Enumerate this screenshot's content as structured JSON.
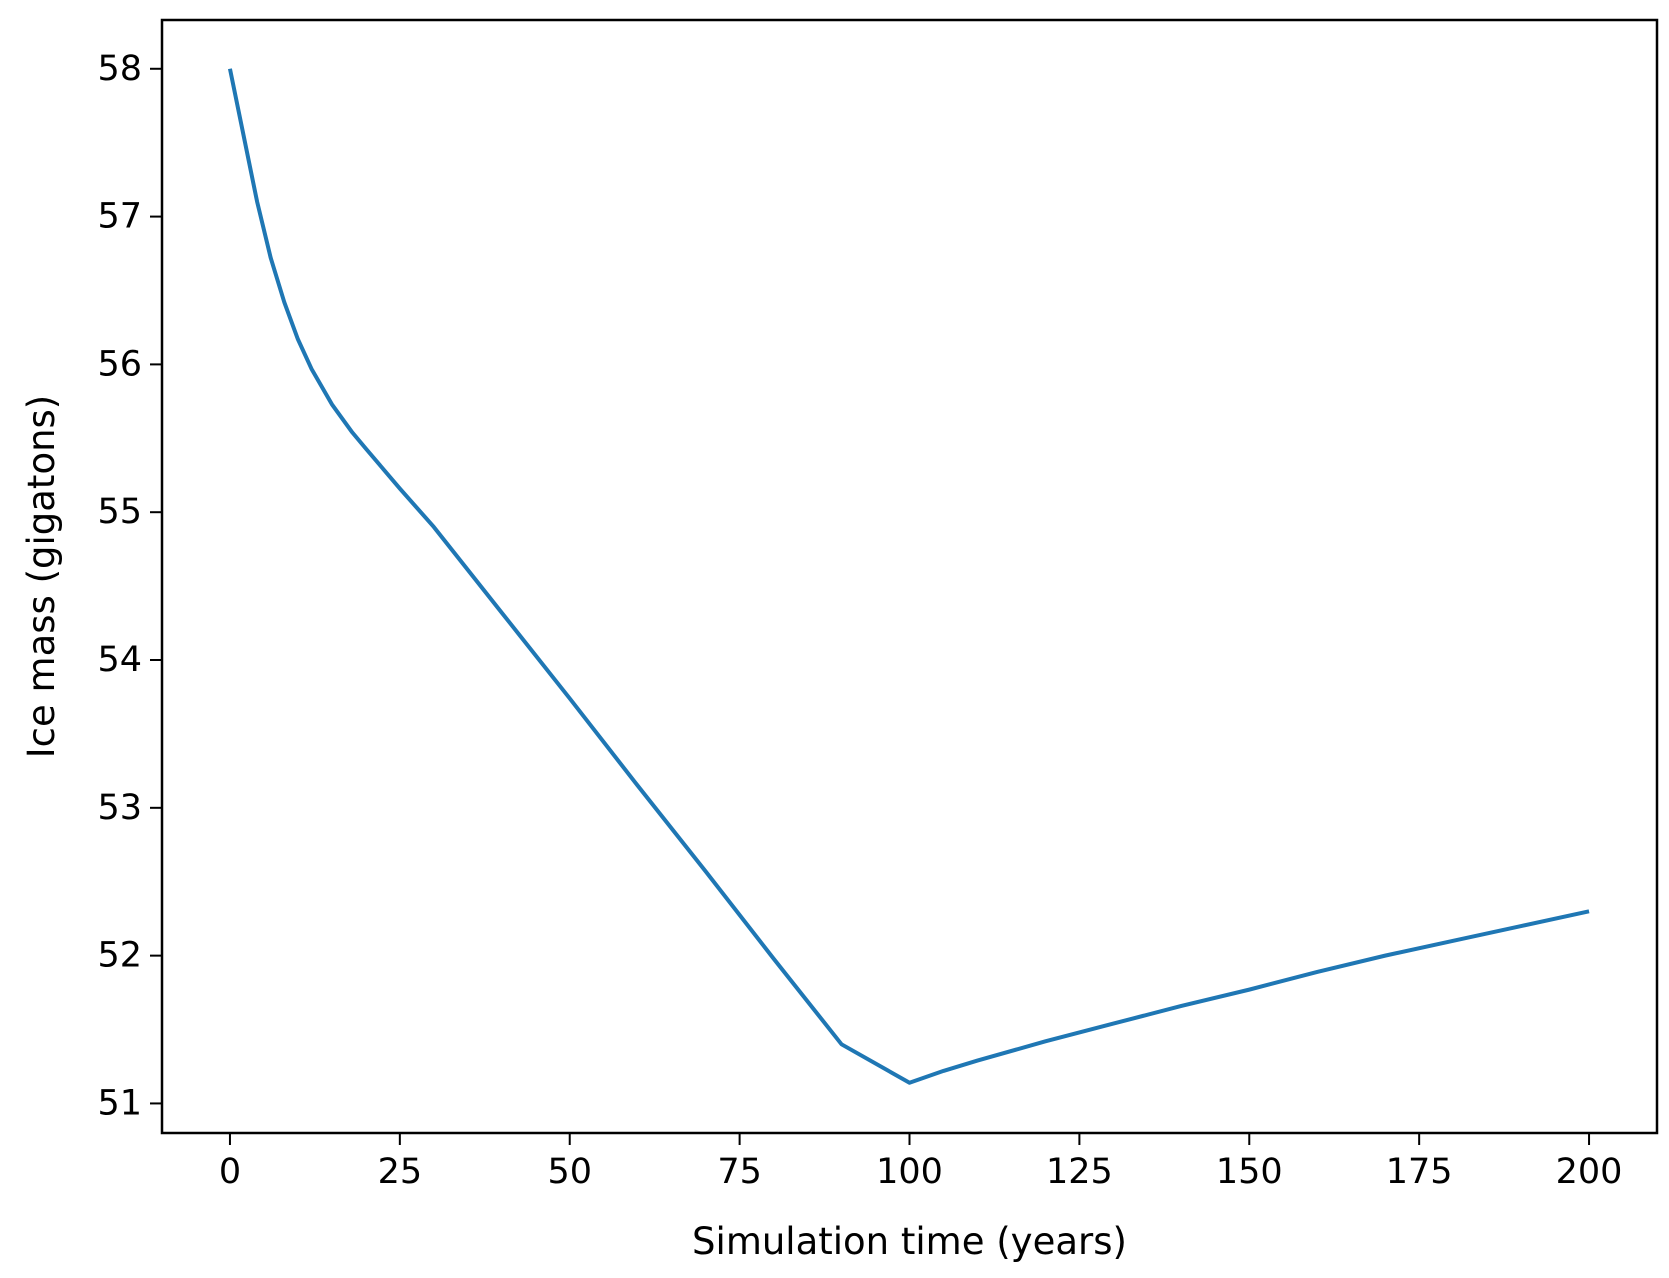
{
  "chart_data": {
    "type": "line",
    "title": "",
    "xlabel": "Simulation time (years)",
    "ylabel": "Ice mass (gigatons)",
    "xlim": [
      -10,
      210
    ],
    "ylim": [
      50.8,
      58.33
    ],
    "xticks": [
      0,
      25,
      50,
      75,
      100,
      125,
      150,
      175,
      200
    ],
    "yticks": [
      51,
      52,
      53,
      54,
      55,
      56,
      57,
      58
    ],
    "grid": false,
    "legend": "none",
    "line_color": "#1f77b4",
    "series": [
      {
        "x": [
          0,
          2,
          4,
          6,
          8,
          10,
          12,
          15,
          18,
          20,
          25,
          30,
          35,
          40,
          50,
          60,
          70,
          80,
          90,
          100,
          105,
          110,
          120,
          130,
          140,
          150,
          160,
          170,
          180,
          190,
          200
        ],
        "y": [
          58.0,
          57.55,
          57.1,
          56.72,
          56.42,
          56.17,
          55.97,
          55.73,
          55.54,
          55.43,
          55.16,
          54.9,
          54.61,
          54.32,
          53.74,
          53.15,
          52.57,
          51.98,
          51.4,
          51.14,
          51.22,
          51.29,
          51.42,
          51.54,
          51.66,
          51.77,
          51.89,
          52.0,
          52.1,
          52.2,
          52.3
        ]
      }
    ]
  }
}
